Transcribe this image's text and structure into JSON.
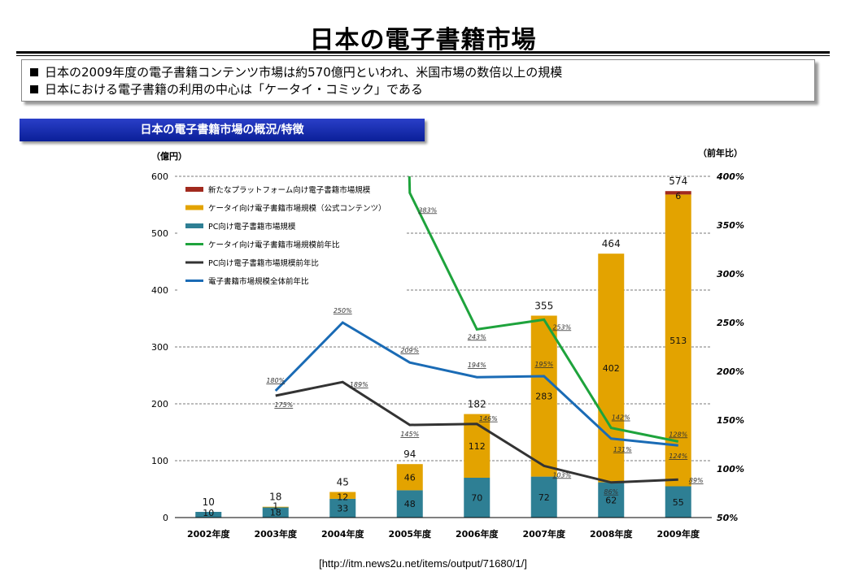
{
  "page": {
    "title": "日本の電子書籍市場",
    "bullets": [
      "日本の2009年度の電子書籍コンテンツ市場は約570億円といわれ、米国市場の数倍以上の規模",
      "日本における電子書籍の利用の中心は「ケータイ・コミック」である"
    ],
    "section_title": "日本の電子書籍市場の概況/特徴",
    "source": "[http://itm.news2u.net/items/output/71680/1/]"
  },
  "chart_data": {
    "type": "bar",
    "y_left_label": "（億円）",
    "y_right_label": "（前年比）",
    "ylim": [
      0,
      600
    ],
    "y_ticks": [
      0,
      100,
      200,
      300,
      400,
      500,
      600
    ],
    "y2lim": [
      50,
      400
    ],
    "y2_ticks": [
      "50%",
      "100%",
      "150%",
      "200%",
      "250%",
      "300%",
      "350%",
      "400%"
    ],
    "categories": [
      "2002年度",
      "2003年度",
      "2004年度",
      "2005年度",
      "2006年度",
      "2007年度",
      "2008年度",
      "2009年度"
    ],
    "totals": [
      "10",
      "18",
      "45",
      "94",
      "182",
      "355",
      "464",
      "574"
    ],
    "bar_series": [
      {
        "name": "PC向け電子書籍市場規模",
        "color": "#2e7f94",
        "values": [
          10,
          18,
          33,
          48,
          70,
          72,
          62,
          55
        ],
        "labels": [
          "10",
          "18",
          "33",
          "48",
          "70",
          "72",
          "62",
          "55"
        ]
      },
      {
        "name": "ケータイ向け電子書籍市場規模（公式コンテンツ）",
        "color": "#e3a300",
        "values": [
          0,
          1,
          12,
          46,
          112,
          283,
          402,
          513
        ],
        "labels": [
          "",
          "1",
          "12",
          "46",
          "112",
          "283",
          "402",
          "513"
        ]
      },
      {
        "name": "新たなプラットフォーム向け電子書籍市場規模",
        "color": "#a12a1e",
        "values": [
          0,
          0,
          0,
          0,
          0,
          0,
          0,
          6
        ],
        "labels": [
          "",
          "",
          "",
          "",
          "",
          "",
          "",
          "6"
        ]
      }
    ],
    "line_series": [
      {
        "name": "ケータイ向け電子書籍市場規模前年比",
        "color": "#1ea33c",
        "values": [
          null,
          null,
          null,
          383,
          243,
          253,
          142,
          128
        ],
        "labels": [
          "",
          "",
          "",
          "383%",
          "243%",
          "253%",
          "142%",
          "128%"
        ]
      },
      {
        "name": "PC向け電子書籍市場規模前年比",
        "color": "#333333",
        "values": [
          null,
          175,
          189,
          145,
          146,
          103,
          86,
          89
        ],
        "labels": [
          "",
          "175%",
          "189%",
          "145%",
          "146%",
          "103%",
          "86%",
          "89%"
        ]
      },
      {
        "name": "電子書籍市場規模全体前年比",
        "color": "#1a6bb5",
        "values": [
          null,
          180,
          250,
          209,
          194,
          195,
          131,
          124
        ],
        "labels": [
          "",
          "180%",
          "250%",
          "209%",
          "194%",
          "195%",
          "131%",
          "124%"
        ]
      }
    ],
    "legend_order": [
      "新たなプラットフォーム向け電子書籍市場規模",
      "ケータイ向け電子書籍市場規模（公式コンテンツ）",
      "PC向け電子書籍市場規模",
      "ケータイ向け電子書籍市場規模前年比",
      "PC向け電子書籍市場規模前年比",
      "電子書籍市場規模全体前年比"
    ],
    "legend_position": "top-left",
    "grid": "dashed-horizontal"
  }
}
